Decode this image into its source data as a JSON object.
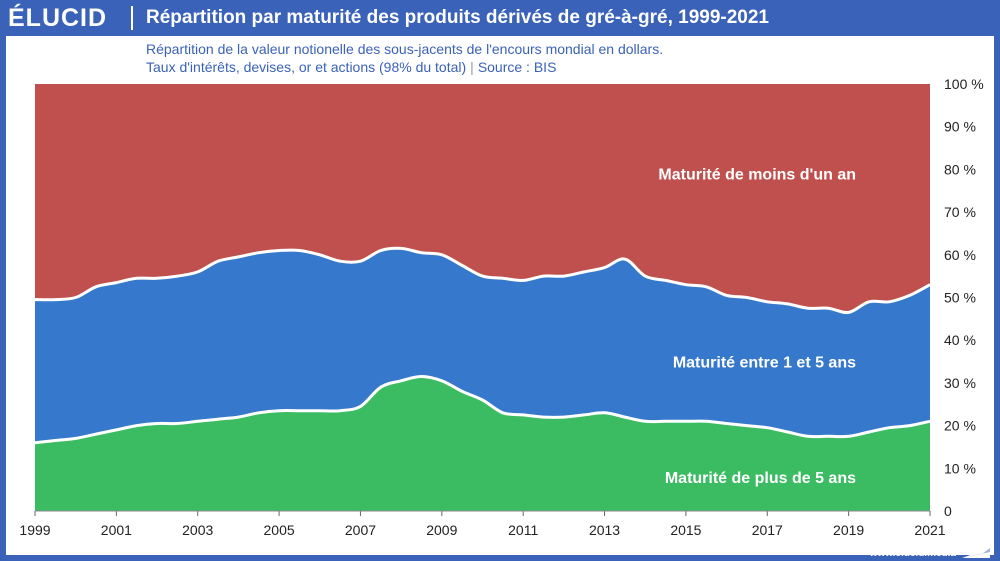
{
  "brand": {
    "logo": "ÉLUCID",
    "footer_url": "www.elucid.media"
  },
  "chart_data": {
    "type": "area",
    "title": "Répartition par maturité des produits dérivés de gré-à-gré, 1999-2021",
    "subtitle_line1": "Répartition de la valeur notionelle des sous-jacents de l'encours mondial en dollars.",
    "subtitle_line2a": "Taux d'intérêts, devises, or et actions (98% du total)",
    "subtitle_line2_sep": "|",
    "subtitle_line2b": "Source : BIS",
    "x_ticks": [
      "1999",
      "2001",
      "2003",
      "2005",
      "2007",
      "2009",
      "2011",
      "2013",
      "2015",
      "2017",
      "2019",
      "2021"
    ],
    "y_ticks": [
      "0",
      "10 %",
      "20 %",
      "30 %",
      "40 %",
      "50 %",
      "60 %",
      "70 %",
      "80 %",
      "90 %",
      "100 %"
    ],
    "xlim": [
      1999,
      2021
    ],
    "ylim": [
      0,
      100
    ],
    "x": [
      1999,
      1999.5,
      2000,
      2000.5,
      2001,
      2001.5,
      2002,
      2002.5,
      2003,
      2003.5,
      2004,
      2004.5,
      2005,
      2005.5,
      2006,
      2006.5,
      2007,
      2007.5,
      2008,
      2008.5,
      2009,
      2009.5,
      2010,
      2010.5,
      2011,
      2011.5,
      2012,
      2012.5,
      2013,
      2013.5,
      2014,
      2014.5,
      2015,
      2015.5,
      2016,
      2016.5,
      2017,
      2017.5,
      2018,
      2018.5,
      2019,
      2019.5,
      2020,
      2020.5,
      2021
    ],
    "series": [
      {
        "name": "Maturité de plus de 5 ans",
        "color": "#3cbc62",
        "values": [
          16,
          16.5,
          17,
          18,
          19,
          20,
          20.5,
          20.5,
          21,
          21.5,
          22,
          23,
          23.5,
          23.5,
          23.5,
          23.5,
          24.5,
          29,
          30.5,
          31.5,
          30.5,
          28,
          26,
          23,
          22.5,
          22,
          22,
          22.5,
          23,
          22,
          21,
          21,
          21,
          21,
          20.5,
          20,
          19.5,
          18.5,
          17.5,
          17.5,
          17.5,
          18.5,
          19.5,
          20,
          21
        ]
      },
      {
        "name": "Maturité entre 1 et 5 ans",
        "color": "#3679cc",
        "values": [
          33.5,
          33,
          33,
          34.5,
          34.5,
          34.5,
          34,
          34.5,
          35,
          37,
          37.5,
          37.5,
          37.5,
          37.5,
          36.5,
          35,
          34,
          32,
          31,
          29,
          29.5,
          29.5,
          29,
          31.5,
          31.5,
          33,
          33,
          33.5,
          34,
          37,
          34,
          33,
          32,
          31.5,
          30,
          30,
          29.5,
          30,
          30,
          30,
          29,
          30.5,
          29.5,
          30.5,
          32
        ]
      },
      {
        "name": "Maturité de moins d'un an",
        "color": "#c0504e",
        "values": [
          50.5,
          50.5,
          50,
          47.5,
          46.5,
          45.5,
          45.5,
          45,
          44,
          41.5,
          40.5,
          39.5,
          39,
          39,
          40,
          41.5,
          41.5,
          39,
          38.5,
          39.5,
          40,
          42.5,
          45,
          45.5,
          46,
          45,
          45,
          44,
          43,
          41,
          45,
          46,
          47,
          47.5,
          49.5,
          50,
          51,
          51.5,
          52.5,
          52.5,
          53.5,
          51,
          51,
          49.5,
          47
        ]
      }
    ],
    "legend_placement": "inline-labels",
    "grid": false
  }
}
